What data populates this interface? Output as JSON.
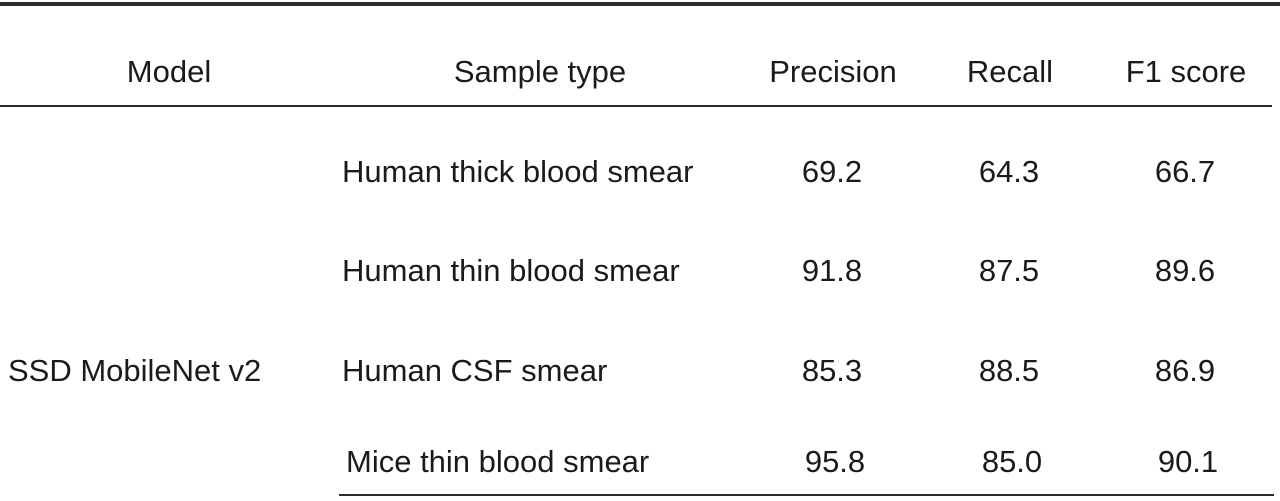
{
  "table": {
    "headers": {
      "model": "Model",
      "sample_type": "Sample type",
      "precision": "Precision",
      "recall": "Recall",
      "f1": "F1 score"
    },
    "model_name": "SSD MobileNet v2",
    "rows": [
      {
        "sample_type": "Human thick blood smear",
        "precision": "69.2",
        "recall": "64.3",
        "f1": "66.7"
      },
      {
        "sample_type": "Human thin blood smear",
        "precision": "91.8",
        "recall": "87.5",
        "f1": "89.6"
      },
      {
        "sample_type": "Human CSF smear",
        "precision": "85.3",
        "recall": "88.5",
        "f1": "86.9"
      },
      {
        "sample_type": "Mice thin blood smear",
        "precision": "95.8",
        "recall": "85.0",
        "f1": "90.1"
      }
    ]
  }
}
